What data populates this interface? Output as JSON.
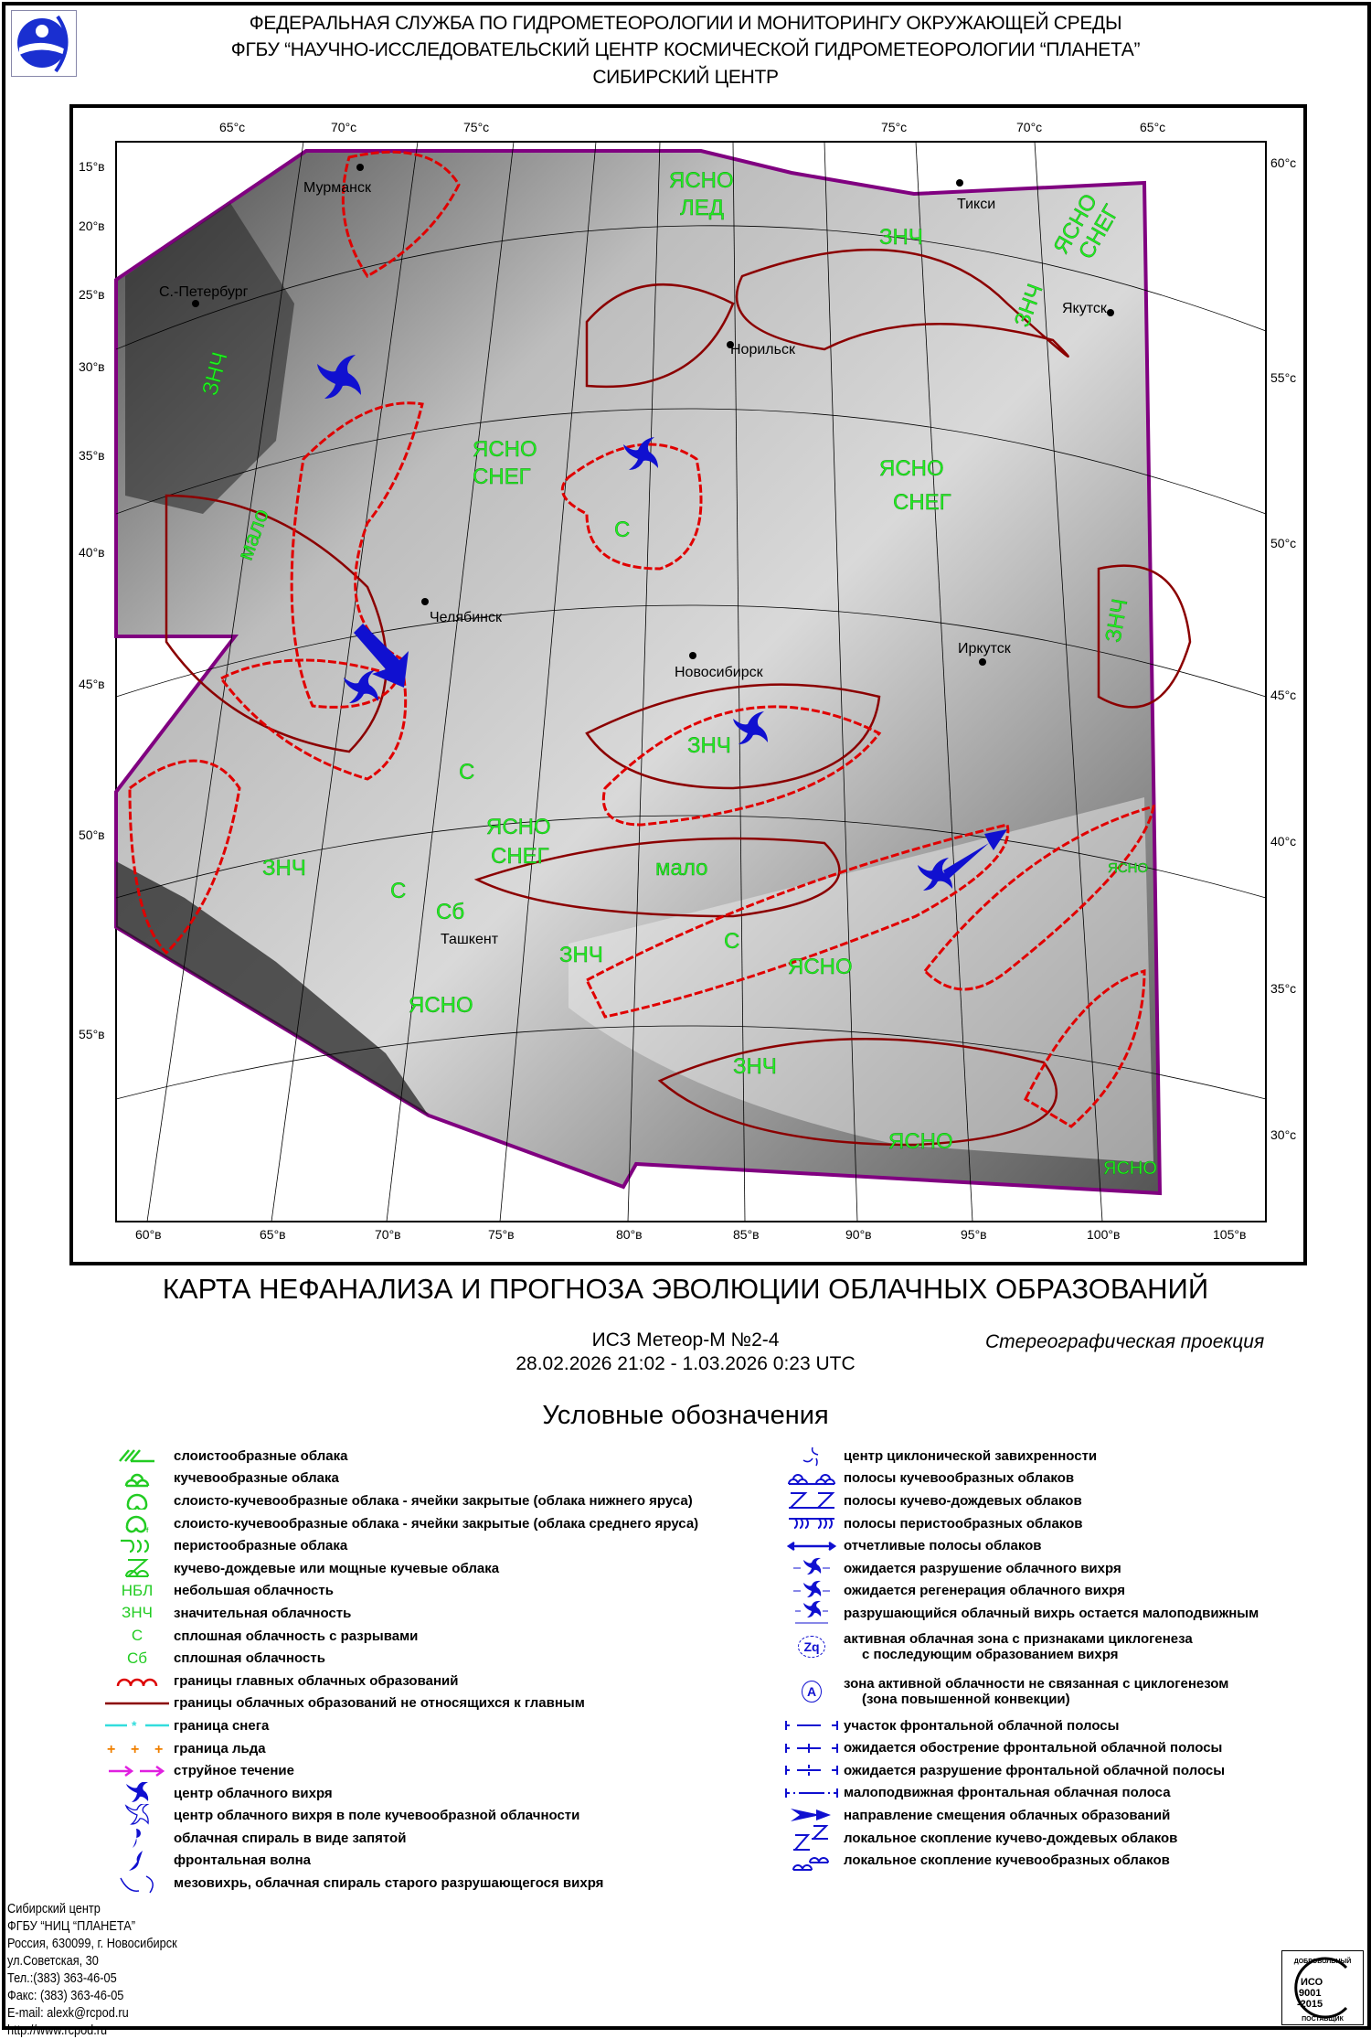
{
  "header": {
    "lines": [
      "ФЕДЕРАЛЬНАЯ СЛУЖБА ПО ГИДРОМЕТЕОРОЛОГИИ И МОНИТОРИНГУ ОКРУЖАЮЩЕЙ СРЕДЫ",
      "ФГБУ “НАУЧНО-ИССЛЕДОВАТЕЛЬСКИЙ ЦЕНТР КОСМИЧЕСКОЙ ГИДРОМЕТЕОРОЛОГИИ “ПЛАНЕТА”",
      "СИБИРСКИЙ ЦЕНТР"
    ]
  },
  "map": {
    "top_lat_labels": [
      "65°c",
      "70°c",
      "75°c",
      "75°c",
      "70°c",
      "65°c"
    ],
    "left_lon_labels": [
      "15°в",
      "20°в",
      "25°в",
      "30°в",
      "35°в",
      "40°в",
      "45°в",
      "50°в",
      "55°в"
    ],
    "right_lat_labels": [
      "60°c",
      "55°c",
      "50°c",
      "45°c",
      "40°c",
      "35°c",
      "30°c"
    ],
    "bottom_lon_labels": [
      "60°в",
      "65°в",
      "70°в",
      "75°в",
      "80°в",
      "85°в",
      "90°в",
      "95°в",
      "100°в",
      "105°в"
    ],
    "cities": [
      "Мурманск",
      "С.-Петербург",
      "Норильск",
      "Тикси",
      "Якутск",
      "Челябинск",
      "Новосибирск",
      "Иркутск",
      "Ташкент"
    ],
    "cloud_labels": {
      "clear": "ЯСНО",
      "ice": "ЛЕД",
      "snow": "СНЕГ",
      "significant": "ЗНЧ",
      "solid_breaks": "С",
      "solid": "Сб",
      "few": "мало"
    },
    "colors": {
      "boundary": "#800080",
      "main_cloud_border": "#e00000",
      "secondary_cloud_border": "#8b0000",
      "labels": "#22ee22",
      "vortex": "#1010d0"
    }
  },
  "title": "КАРТА НЕФАНАЛИЗА И ПРОГНОЗА ЭВОЛЮЦИИ  ОБЛАЧНЫХ ОБРАЗОВАНИЙ",
  "satellite": "ИСЗ Метеор-М №2-4",
  "period": "28.02.2026 21:02 - 1.03.2026 0:23 UTC",
  "projection": "Стереографическая проекция",
  "legend": {
    "title": "Условные обозначения",
    "left": [
      {
        "icon": "stratiform-icon",
        "label": "слоистообразные облака"
      },
      {
        "icon": "cumuliform-icon",
        "label": "кучевообразные облака"
      },
      {
        "icon": "stratocumulus-low-icon",
        "label": "слоисто-кучевообразные облака -  ячейки закрытые (облака нижнего яруса)"
      },
      {
        "icon": "stratocumulus-mid-icon",
        "label": "слоисто-кучевообразные облака -  ячейки закрытые (облака среднего яруса)"
      },
      {
        "icon": "cirriform-icon",
        "label": "перистообразные облака"
      },
      {
        "icon": "cumulonimbus-icon",
        "label": "кучево-дождевые или мощные кучевые облака"
      },
      {
        "icon": "text-nbl",
        "symbol": "НБЛ",
        "label": "небольшая облачность"
      },
      {
        "icon": "text-znch",
        "symbol": "ЗНЧ",
        "label": "значительная облачность"
      },
      {
        "icon": "text-s",
        "symbol": "С",
        "label": "сплошная облачность с разрывами"
      },
      {
        "icon": "text-sb",
        "symbol": "Сб",
        "label": "сплошная облачность"
      },
      {
        "icon": "scallop-border-icon",
        "label": "границы главных облачных образований"
      },
      {
        "icon": "line-border-icon",
        "label": "границы облачных образований не относящихся к главным"
      },
      {
        "icon": "snow-boundary-icon",
        "label": "граница снега"
      },
      {
        "icon": "ice-boundary-icon",
        "label": "граница льда"
      },
      {
        "icon": "jet-stream-icon",
        "label": "струйное течение"
      },
      {
        "icon": "vortex-center-icon",
        "label": "центр облачного вихря"
      },
      {
        "icon": "vortex-cumulus-icon",
        "label": "центр облачного вихря в поле кучевообразной облачности"
      },
      {
        "icon": "comma-spiral-icon",
        "label": "облачная спираль в виде запятой"
      },
      {
        "icon": "frontal-wave-icon",
        "label": "фронтальная волна"
      },
      {
        "icon": "mesovortex-icon",
        "label": "мезовихрь, облачная спираль старого разрушающегося вихря"
      }
    ],
    "right": [
      {
        "icon": "cyclonic-center-icon",
        "label": "центр циклонической завихренности"
      },
      {
        "icon": "cumulus-bands-icon",
        "label": "полосы кучевообразных облаков"
      },
      {
        "icon": "cumulonimbus-bands-icon",
        "label": "полосы кучево-дождевых облаков"
      },
      {
        "icon": "cirrus-bands-icon",
        "label": "полосы перистообразных облаков"
      },
      {
        "icon": "distinct-bands-icon",
        "label": "отчетливые полосы облаков"
      },
      {
        "icon": "vortex-decay-icon",
        "label": "ожидается разрушение облачного вихря"
      },
      {
        "icon": "vortex-regen-icon",
        "label": "ожидается регенерация облачного вихря"
      },
      {
        "icon": "vortex-stationary-icon",
        "label": "разрушающийся облачный вихрь остается малоподвижным"
      },
      {
        "icon": "zq-icon",
        "symbol": "Zq",
        "label": "активная облачная зона с признаками циклогенеза",
        "label2": "с последующим образованием вихря"
      },
      {
        "icon": "a-zone-icon",
        "symbol": "A",
        "label": "зона активной облачности не связанная с циклогенезом",
        "label2": "(зона повышенной конвекции)"
      },
      {
        "icon": "front-segment-icon",
        "label": "участок фронтальной облачной полосы"
      },
      {
        "icon": "front-sharpen-icon",
        "label": "ожидается обострение фронтальной облачной полосы"
      },
      {
        "icon": "front-decay-icon",
        "label": "ожидается разрушение фронтальной облачной полосы"
      },
      {
        "icon": "front-stationary-icon",
        "label": "малоподвижная фронтальная облачная полоса"
      },
      {
        "icon": "motion-arrow-icon",
        "label": "направление смещения облачных образований"
      },
      {
        "icon": "local-cb-icon",
        "label": "локальное скопление кучево-дождевых облаков"
      },
      {
        "icon": "local-cu-icon",
        "label": "локальное скопление кучевообразных облаков"
      }
    ]
  },
  "footer": {
    "lines": [
      "Сибирский центр",
      "ФГБУ “НИЦ “ПЛАНЕТА”",
      "Россия, 630099, г. Новосибирск",
      "ул.Советская, 30",
      "Тел.:(383) 363-46-05",
      "Факс: (383) 363-46-05",
      "E-mail: alexk@rcpod.ru",
      "http://www.rcpod.ru"
    ],
    "iso_badge": [
      "ДОБРОВОЛЬНЫЙ",
      "ИСО",
      "9001",
      "-2015",
      "ПОСТАВЩИК"
    ]
  }
}
